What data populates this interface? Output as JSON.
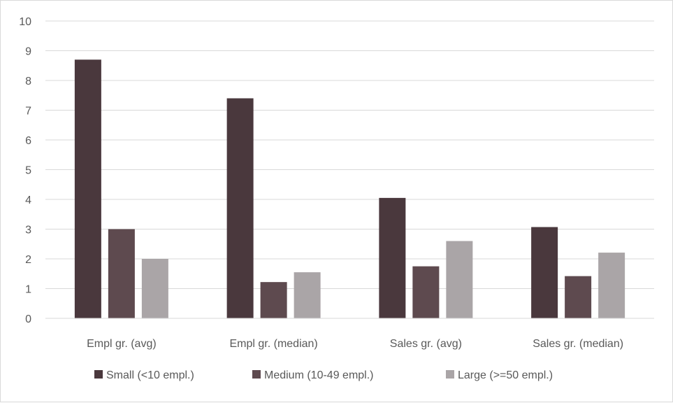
{
  "chart_data": {
    "type": "bar",
    "categories": [
      "Empl gr. (avg)",
      "Empl gr. (median)",
      "Sales gr. (avg)",
      "Sales gr. (median)"
    ],
    "series": [
      {
        "name": "Small (<10 empl.)",
        "color": "#4a383d",
        "values": [
          8.7,
          7.4,
          4.05,
          3.07
        ]
      },
      {
        "name": "Medium (10-49 empl.)",
        "color": "#5e4a4f",
        "values": [
          3.0,
          1.22,
          1.75,
          1.42
        ]
      },
      {
        "name": "Large (>=50 empl.)",
        "color": "#aaa5a7",
        "values": [
          2.0,
          1.55,
          2.6,
          2.21
        ]
      }
    ],
    "ylim": [
      0,
      10
    ],
    "yticks": [
      0,
      1,
      2,
      3,
      4,
      5,
      6,
      7,
      8,
      9,
      10
    ],
    "grid": true,
    "legend_position": "bottom"
  }
}
